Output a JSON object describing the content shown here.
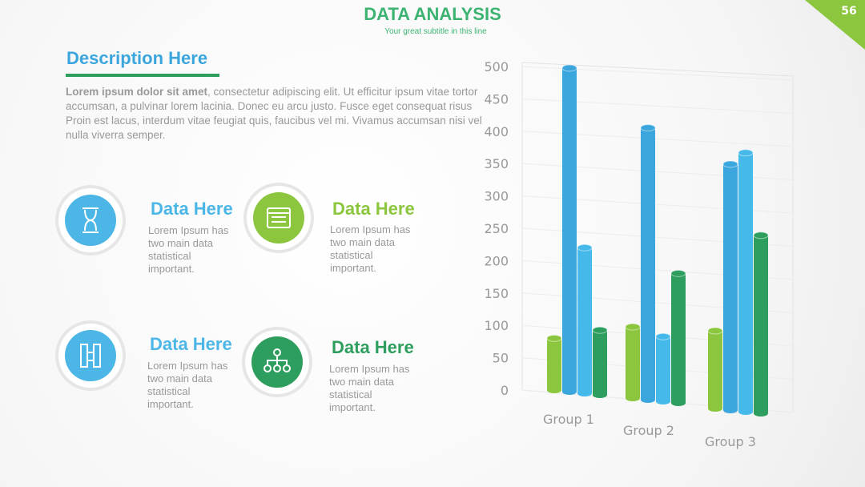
{
  "header": {
    "title": "DATA ANALYSIS",
    "subtitle": "Your great subtitle in this line",
    "page_number": "56"
  },
  "description": {
    "heading": "Description Here",
    "lead": "Lorem ipsum dolor sit amet",
    "body": ", consectetur adipiscing elit. Ut efficitur ipsum vitae tortor accumsan, a pulvinar lorem lacinia. Donec eu arcu justo. Fusce eget consequat risus Proin est lacus, interdum vitae feugiat quis, faucibus vel mi. Vivamus accumsan nisi vel nulla viverra semper."
  },
  "items": [
    {
      "title": "Data Here",
      "text": "Lorem Ipsum has two main data statistical important."
    },
    {
      "title": "Data Here",
      "text": "Lorem Ipsum has two main data statistical important."
    },
    {
      "title": "Data Here",
      "text": "Lorem Ipsum has two main data statistical important."
    },
    {
      "title": "Data Here",
      "text": "Lorem Ipsum has two main data statistical important."
    }
  ],
  "chart_data": {
    "type": "bar",
    "categories": [
      "Group 1",
      "Group 2",
      "Group 3"
    ],
    "series": [
      {
        "color": "#8cc63f",
        "values": [
          80,
          110,
          120
        ]
      },
      {
        "color": "#3aa6dd",
        "values": [
          500,
          420,
          380
        ]
      },
      {
        "color": "#45b9ea",
        "values": [
          225,
          100,
          400
        ]
      },
      {
        "color": "#2e9e5e",
        "values": [
          100,
          200,
          275
        ]
      }
    ],
    "ylim": [
      0,
      500
    ],
    "yticks": [
      0,
      50,
      100,
      150,
      200,
      250,
      300,
      350,
      400,
      450,
      500
    ],
    "grid": true
  }
}
